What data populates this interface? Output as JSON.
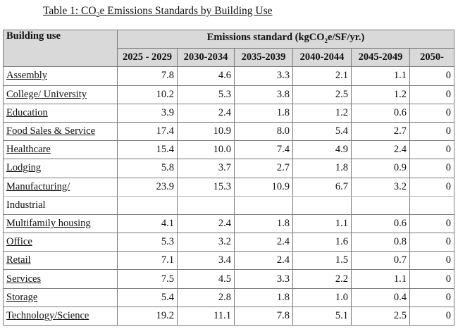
{
  "caption": {
    "prefix": "Table 1: CO",
    "sub": "2",
    "suffix": "e Emissions Standards by Building Use"
  },
  "header": {
    "use_label": "Building use",
    "standard_prefix": "Emissions standard (kgCO",
    "standard_sub": "2",
    "standard_suffix": "e/SF/yr.)",
    "periods": [
      "2025 - 2029",
      "2030-2034",
      "2035-2039",
      "2040-2044",
      "2045-2049",
      "2050-"
    ]
  },
  "rows": [
    {
      "use": "Assembly",
      "values": [
        "7.8",
        "4.6",
        "3.3",
        "2.1",
        "1.1",
        "0"
      ]
    },
    {
      "use": "College/ University",
      "values": [
        "10.2",
        "5.3",
        "3.8",
        "2.5",
        "1.2",
        "0"
      ]
    },
    {
      "use": "Education",
      "values": [
        "3.9",
        "2.4",
        "1.8",
        "1.2",
        "0.6",
        "0"
      ]
    },
    {
      "use": "Food Sales & Service",
      "values": [
        "17.4",
        "10.9",
        "8.0",
        "5.4",
        "2.7",
        "0"
      ]
    },
    {
      "use": "Healthcare",
      "values": [
        "15.4",
        "10.0",
        "7.4",
        "4.9",
        "2.4",
        "0"
      ]
    },
    {
      "use": "Lodging",
      "values": [
        "5.8",
        "3.7",
        "2.7",
        "1.8",
        "0.9",
        "0"
      ]
    },
    {
      "use": "Manufacturing/",
      "use_cont": "Industrial",
      "values": [
        "23.9",
        "15.3",
        "10.9",
        "6.7",
        "3.2",
        "0"
      ]
    },
    {
      "use": "Multifamily housing",
      "values": [
        "4.1",
        "2.4",
        "1.8",
        "1.1",
        "0.6",
        "0"
      ]
    },
    {
      "use": "Office",
      "values": [
        "5.3",
        "3.2",
        "2.4",
        "1.6",
        "0.8",
        "0"
      ]
    },
    {
      "use": "Retail",
      "values": [
        "7.1",
        "3.4",
        "2.4",
        "1.5",
        "0.7",
        "0"
      ]
    },
    {
      "use": "Services",
      "values": [
        "7.5",
        "4.5",
        "3.3",
        "2.2",
        "1.1",
        "0"
      ]
    },
    {
      "use": "Storage",
      "values": [
        "5.4",
        "2.8",
        "1.8",
        "1.0",
        "0.4",
        "0"
      ]
    },
    {
      "use": "Technology/Science",
      "values": [
        "19.2",
        "11.1",
        "7.8",
        "5.1",
        "2.5",
        "0"
      ]
    }
  ]
}
